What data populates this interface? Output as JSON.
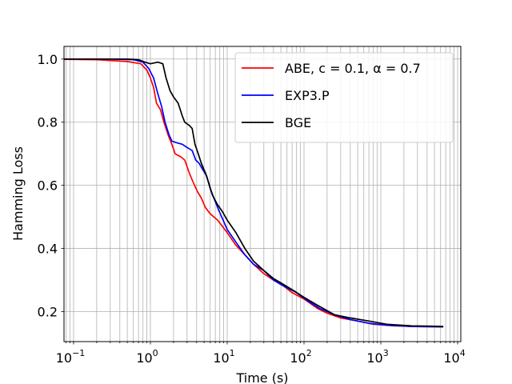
{
  "chart_data": {
    "type": "line",
    "title": "",
    "xlabel": "Time (s)",
    "ylabel": "Hamming Loss",
    "xscale": "log",
    "xlim": [
      0.075,
      11000
    ],
    "ylim": [
      0.105,
      1.04
    ],
    "xticks": [
      {
        "value": 0.1,
        "base": "10",
        "exp": "−1"
      },
      {
        "value": 1,
        "base": "10",
        "exp": "0"
      },
      {
        "value": 10,
        "base": "10",
        "exp": "1"
      },
      {
        "value": 100,
        "base": "10",
        "exp": "2"
      },
      {
        "value": 1000,
        "base": "10",
        "exp": "3"
      },
      {
        "value": 10000,
        "base": "10",
        "exp": "4"
      }
    ],
    "yticks": [
      {
        "value": 0.2,
        "label": "0.2"
      },
      {
        "value": 0.4,
        "label": "0.4"
      },
      {
        "value": 0.6,
        "label": "0.6"
      },
      {
        "value": 0.8,
        "label": "0.8"
      },
      {
        "value": 1.0,
        "label": "1.0"
      }
    ],
    "grid": true,
    "legend_position": "top-right",
    "series": [
      {
        "name": "ABE, c = 0.1, α = 0.7",
        "color": "#ff0000",
        "points": [
          [
            0.075,
            0.999
          ],
          [
            0.2,
            0.998
          ],
          [
            0.5,
            0.992
          ],
          [
            0.75,
            0.985
          ],
          [
            0.9,
            0.965
          ],
          [
            1.0,
            0.94
          ],
          [
            1.1,
            0.91
          ],
          [
            1.2,
            0.86
          ],
          [
            1.35,
            0.84
          ],
          [
            1.5,
            0.8
          ],
          [
            1.7,
            0.76
          ],
          [
            1.9,
            0.73
          ],
          [
            2.1,
            0.7
          ],
          [
            2.5,
            0.69
          ],
          [
            2.8,
            0.68
          ],
          [
            3.2,
            0.64
          ],
          [
            3.6,
            0.61
          ],
          [
            4.1,
            0.58
          ],
          [
            4.6,
            0.56
          ],
          [
            5.2,
            0.53
          ],
          [
            6.0,
            0.51
          ],
          [
            7.5,
            0.49
          ],
          [
            10,
            0.45
          ],
          [
            13,
            0.41
          ],
          [
            17,
            0.38
          ],
          [
            22,
            0.35
          ],
          [
            30,
            0.32
          ],
          [
            40,
            0.3
          ],
          [
            55,
            0.28
          ],
          [
            70,
            0.26
          ],
          [
            100,
            0.24
          ],
          [
            150,
            0.21
          ],
          [
            200,
            0.195
          ],
          [
            300,
            0.18
          ],
          [
            500,
            0.17
          ],
          [
            800,
            0.16
          ],
          [
            1500,
            0.155
          ],
          [
            3000,
            0.153
          ],
          [
            6500,
            0.152
          ]
        ]
      },
      {
        "name": "EXP3.P",
        "color": "#0000ff",
        "points": [
          [
            0.075,
            1.0
          ],
          [
            0.3,
            1.0
          ],
          [
            0.6,
            0.998
          ],
          [
            0.8,
            0.99
          ],
          [
            0.95,
            0.97
          ],
          [
            1.1,
            0.94
          ],
          [
            1.25,
            0.89
          ],
          [
            1.4,
            0.85
          ],
          [
            1.55,
            0.8
          ],
          [
            1.75,
            0.76
          ],
          [
            1.9,
            0.74
          ],
          [
            2.2,
            0.735
          ],
          [
            2.6,
            0.73
          ],
          [
            3.0,
            0.72
          ],
          [
            3.5,
            0.71
          ],
          [
            3.9,
            0.68
          ],
          [
            4.3,
            0.67
          ],
          [
            4.8,
            0.65
          ],
          [
            5.4,
            0.63
          ],
          [
            6.0,
            0.59
          ],
          [
            6.7,
            0.56
          ],
          [
            7.8,
            0.52
          ],
          [
            10,
            0.46
          ],
          [
            13,
            0.42
          ],
          [
            17,
            0.38
          ],
          [
            22,
            0.35
          ],
          [
            30,
            0.33
          ],
          [
            40,
            0.3
          ],
          [
            55,
            0.28
          ],
          [
            80,
            0.26
          ],
          [
            110,
            0.235
          ],
          [
            160,
            0.21
          ],
          [
            250,
            0.19
          ],
          [
            400,
            0.175
          ],
          [
            700,
            0.163
          ],
          [
            1200,
            0.157
          ],
          [
            2500,
            0.153
          ],
          [
            6500,
            0.152
          ]
        ]
      },
      {
        "name": "BGE",
        "color": "#000000",
        "points": [
          [
            0.075,
            1.0
          ],
          [
            0.5,
            1.0
          ],
          [
            0.7,
            0.998
          ],
          [
            0.85,
            0.99
          ],
          [
            1.0,
            0.985
          ],
          [
            1.25,
            0.99
          ],
          [
            1.45,
            0.985
          ],
          [
            1.6,
            0.94
          ],
          [
            1.8,
            0.9
          ],
          [
            2.0,
            0.88
          ],
          [
            2.3,
            0.86
          ],
          [
            2.6,
            0.82
          ],
          [
            2.8,
            0.8
          ],
          [
            3.2,
            0.79
          ],
          [
            3.5,
            0.78
          ],
          [
            3.8,
            0.73
          ],
          [
            4.2,
            0.7
          ],
          [
            4.6,
            0.67
          ],
          [
            5.2,
            0.64
          ],
          [
            5.7,
            0.61
          ],
          [
            6.4,
            0.57
          ],
          [
            7.4,
            0.54
          ],
          [
            8.5,
            0.52
          ],
          [
            10,
            0.49
          ],
          [
            13,
            0.45
          ],
          [
            17,
            0.4
          ],
          [
            22,
            0.36
          ],
          [
            30,
            0.33
          ],
          [
            40,
            0.305
          ],
          [
            55,
            0.285
          ],
          [
            75,
            0.265
          ],
          [
            100,
            0.245
          ],
          [
            150,
            0.22
          ],
          [
            250,
            0.19
          ],
          [
            400,
            0.18
          ],
          [
            700,
            0.17
          ],
          [
            1200,
            0.16
          ],
          [
            2500,
            0.155
          ],
          [
            4500,
            0.154
          ],
          [
            6500,
            0.153
          ]
        ]
      }
    ]
  }
}
